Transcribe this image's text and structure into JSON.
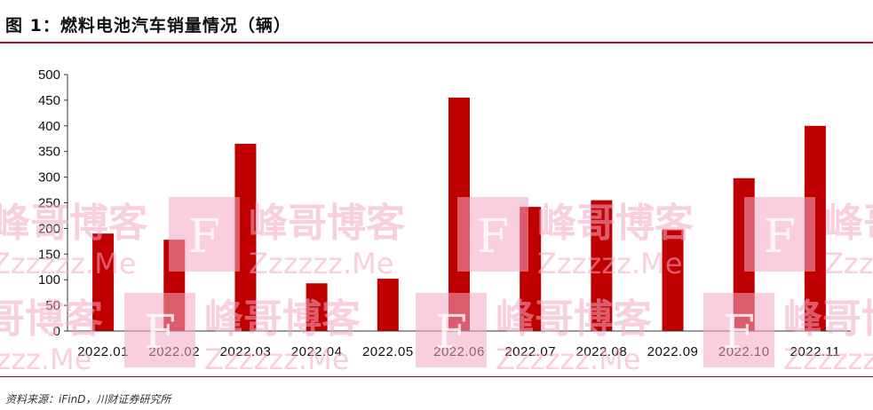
{
  "header": {
    "title": "图 1：燃料电池汽车销量情况（辆）"
  },
  "footer": {
    "source": "资料来源：iFinD，川财证券研究所"
  },
  "colors": {
    "bar": "#c00000",
    "accent_rule": "#b01020",
    "watermark": "#f4a8c4"
  },
  "watermark": {
    "line1": "峰哥博客",
    "line2": "Zzzzzz.Me",
    "logo_letter": "F"
  },
  "chart_data": {
    "type": "bar",
    "title": "",
    "xlabel": "",
    "ylabel": "",
    "categories": [
      "2022.01",
      "2022.02",
      "2022.03",
      "2022.04",
      "2022.05",
      "2022.06",
      "2022.07",
      "2022.08",
      "2022.09",
      "2022.10",
      "2022.11"
    ],
    "values": [
      190,
      178,
      365,
      93,
      102,
      455,
      242,
      255,
      198,
      298,
      400
    ],
    "ylim": [
      0,
      500
    ],
    "yticks": [
      0,
      50,
      100,
      150,
      200,
      250,
      300,
      350,
      400,
      450,
      500
    ],
    "grid": false,
    "legend": "none"
  }
}
